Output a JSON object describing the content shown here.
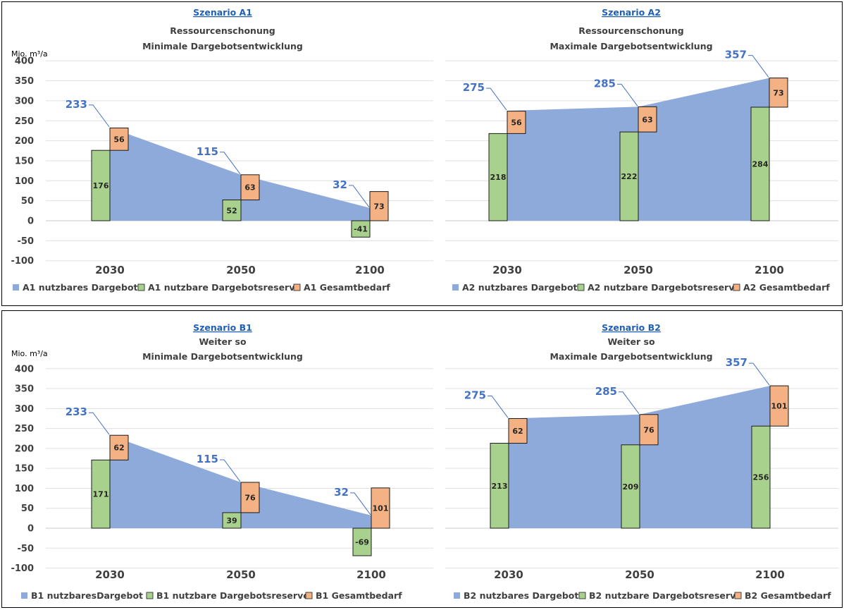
{
  "colors": {
    "available_area": "#8eaadb",
    "reserve_bar": "#a9d18e",
    "reserve_bar_dark": "#70ad47",
    "demand_bar": "#f4b183",
    "demand_bar_dark": "#c55a11",
    "available_label": "#4472c4",
    "title": "#1f5fb5"
  },
  "chart_data": [
    {
      "id": "A1",
      "type": "bar",
      "title": "Szenario A1",
      "subtitle": [
        "Ressourcenschonung",
        "Minimale Dargebotsentwicklung"
      ],
      "ylabel": "Mio. m³/a",
      "ylim": [
        -100,
        400
      ],
      "yticks": [
        400,
        350,
        300,
        250,
        200,
        150,
        100,
        50,
        0,
        -50,
        -100
      ],
      "show_yaxis": true,
      "grid": true,
      "legend_position": "bottom",
      "categories": [
        "2030",
        "2050",
        "2100"
      ],
      "series": [
        {
          "name": "A1 nutzbares Dargebot",
          "kind": "area",
          "values": [
            233,
            115,
            32
          ]
        },
        {
          "name": "A1 nutzbare Dargebotsreserve",
          "kind": "bar",
          "values": [
            176,
            52,
            -41
          ]
        },
        {
          "name": "A1 Gesamtbedarf",
          "kind": "bar-stacked",
          "values": [
            56,
            63,
            73
          ]
        }
      ]
    },
    {
      "id": "A2",
      "type": "bar",
      "title": "Szenario A2",
      "subtitle": [
        "Ressourcenschonung",
        "Maximale Dargebotsentwicklung"
      ],
      "ylabel": "",
      "ylim": [
        -100,
        400
      ],
      "yticks": [],
      "show_yaxis": false,
      "grid": true,
      "legend_position": "bottom",
      "categories": [
        "2030",
        "2050",
        "2100"
      ],
      "series": [
        {
          "name": "A2 nutzbares Dargebot",
          "kind": "area",
          "values": [
            275,
            285,
            357
          ]
        },
        {
          "name": "A2 nutzbare Dargebotsreserve",
          "kind": "bar",
          "values": [
            218,
            222,
            284
          ]
        },
        {
          "name": "A2 Gesamtbedarf",
          "kind": "bar-stacked",
          "values": [
            56,
            63,
            73
          ]
        }
      ]
    },
    {
      "id": "B1",
      "type": "bar",
      "title": "Szenario B1",
      "subtitle": [
        "Weiter so",
        "Minimale Dargebotsentwicklung"
      ],
      "ylabel": "Mio. m³/a",
      "ylim": [
        -100,
        400
      ],
      "yticks": [
        400,
        350,
        300,
        250,
        200,
        150,
        100,
        50,
        0,
        -50,
        -100
      ],
      "show_yaxis": true,
      "grid": true,
      "legend_position": "bottom",
      "categories": [
        "2030",
        "2050",
        "2100"
      ],
      "series": [
        {
          "name": "B1 nutzbaresDargebot",
          "kind": "area",
          "values": [
            233,
            115,
            32
          ]
        },
        {
          "name": "B1 nutzbare Dargebotsreserve",
          "kind": "bar",
          "values": [
            171,
            39,
            -69
          ]
        },
        {
          "name": "B1 Gesamtbedarf",
          "kind": "bar-stacked",
          "values": [
            62,
            76,
            101
          ]
        }
      ]
    },
    {
      "id": "B2",
      "type": "bar",
      "title": "Szenario B2",
      "subtitle": [
        "Weiter so",
        "Maximale Dargebotsentwicklung"
      ],
      "ylabel": "",
      "ylim": [
        -100,
        400
      ],
      "yticks": [],
      "show_yaxis": false,
      "grid": true,
      "legend_position": "bottom",
      "categories": [
        "2030",
        "2050",
        "2100"
      ],
      "series": [
        {
          "name": "B2 nutzbares Dargebot",
          "kind": "area",
          "values": [
            275,
            285,
            357
          ]
        },
        {
          "name": "B2 nutzbare Dargebotsreserve",
          "kind": "bar",
          "values": [
            213,
            209,
            256
          ]
        },
        {
          "name": "B2 Gesamtbedarf",
          "kind": "bar-stacked",
          "values": [
            62,
            76,
            101
          ]
        }
      ]
    }
  ]
}
